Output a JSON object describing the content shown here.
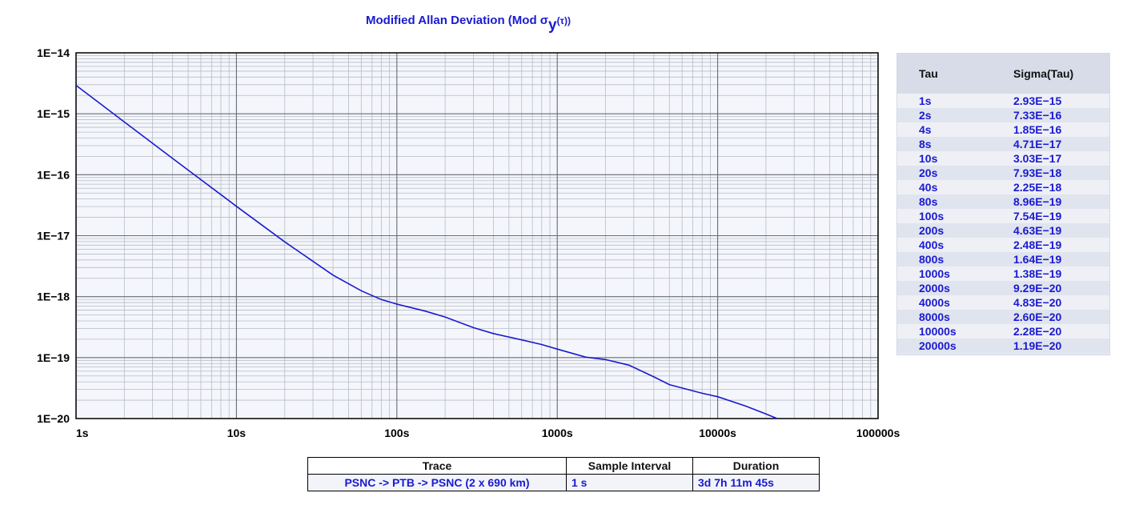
{
  "chart_data": {
    "type": "line",
    "title": "Modified Allan Deviation (Mod σ",
    "title_sub": "y",
    "title_end": "(τ))",
    "x_scale": "log",
    "y_scale": "log",
    "xlim": [
      1,
      100000
    ],
    "ylim": [
      1e-20,
      1e-14
    ],
    "grid": true,
    "x_tick_labels": [
      "1s",
      "10s",
      "100s",
      "1000s",
      "10000s",
      "100000s"
    ],
    "y_tick_labels": [
      "1E−14",
      "1E−15",
      "1E−16",
      "1E−17",
      "1E−18",
      "1E−19",
      "1E−20"
    ],
    "line_color": "#1a1ad0",
    "series": [
      {
        "x": [
          1,
          2,
          4,
          8,
          10,
          20,
          40,
          60,
          80,
          100,
          150,
          200,
          300,
          400,
          600,
          800,
          1000,
          1500,
          2000,
          2800,
          4000,
          5000,
          8000,
          10000,
          15000,
          20000,
          23500
        ],
        "y": [
          2.93e-15,
          7.33e-16,
          1.85e-16,
          4.71e-17,
          3.03e-17,
          7.93e-18,
          2.25e-18,
          1.25e-18,
          8.96e-19,
          7.54e-19,
          5.8e-19,
          4.63e-19,
          3.1e-19,
          2.48e-19,
          1.95e-19,
          1.64e-19,
          1.38e-19,
          1.02e-19,
          9.29e-20,
          7.5e-20,
          4.83e-20,
          3.6e-20,
          2.6e-20,
          2.28e-20,
          1.6e-20,
          1.19e-20,
          1e-20
        ]
      }
    ]
  },
  "tau_table": {
    "headers": [
      "Tau",
      "Sigma(Tau)"
    ],
    "rows": [
      [
        "1s",
        "2.93E−15"
      ],
      [
        "2s",
        "7.33E−16"
      ],
      [
        "4s",
        "1.85E−16"
      ],
      [
        "8s",
        "4.71E−17"
      ],
      [
        "10s",
        "3.03E−17"
      ],
      [
        "20s",
        "7.93E−18"
      ],
      [
        "40s",
        "2.25E−18"
      ],
      [
        "80s",
        "8.96E−19"
      ],
      [
        "100s",
        "7.54E−19"
      ],
      [
        "200s",
        "4.63E−19"
      ],
      [
        "400s",
        "2.48E−19"
      ],
      [
        "800s",
        "1.64E−19"
      ],
      [
        "1000s",
        "1.38E−19"
      ],
      [
        "2000s",
        "9.29E−20"
      ],
      [
        "4000s",
        "4.83E−20"
      ],
      [
        "8000s",
        "2.60E−20"
      ],
      [
        "10000s",
        "2.28E−20"
      ],
      [
        "20000s",
        "1.19E−20"
      ]
    ]
  },
  "trace_table": {
    "headers": [
      "Trace",
      "Sample Interval",
      "Duration"
    ],
    "row": [
      "PSNC -> PTB -> PSNC (2 x 690 km)",
      "1 s",
      "3d 7h 11m 45s"
    ]
  }
}
